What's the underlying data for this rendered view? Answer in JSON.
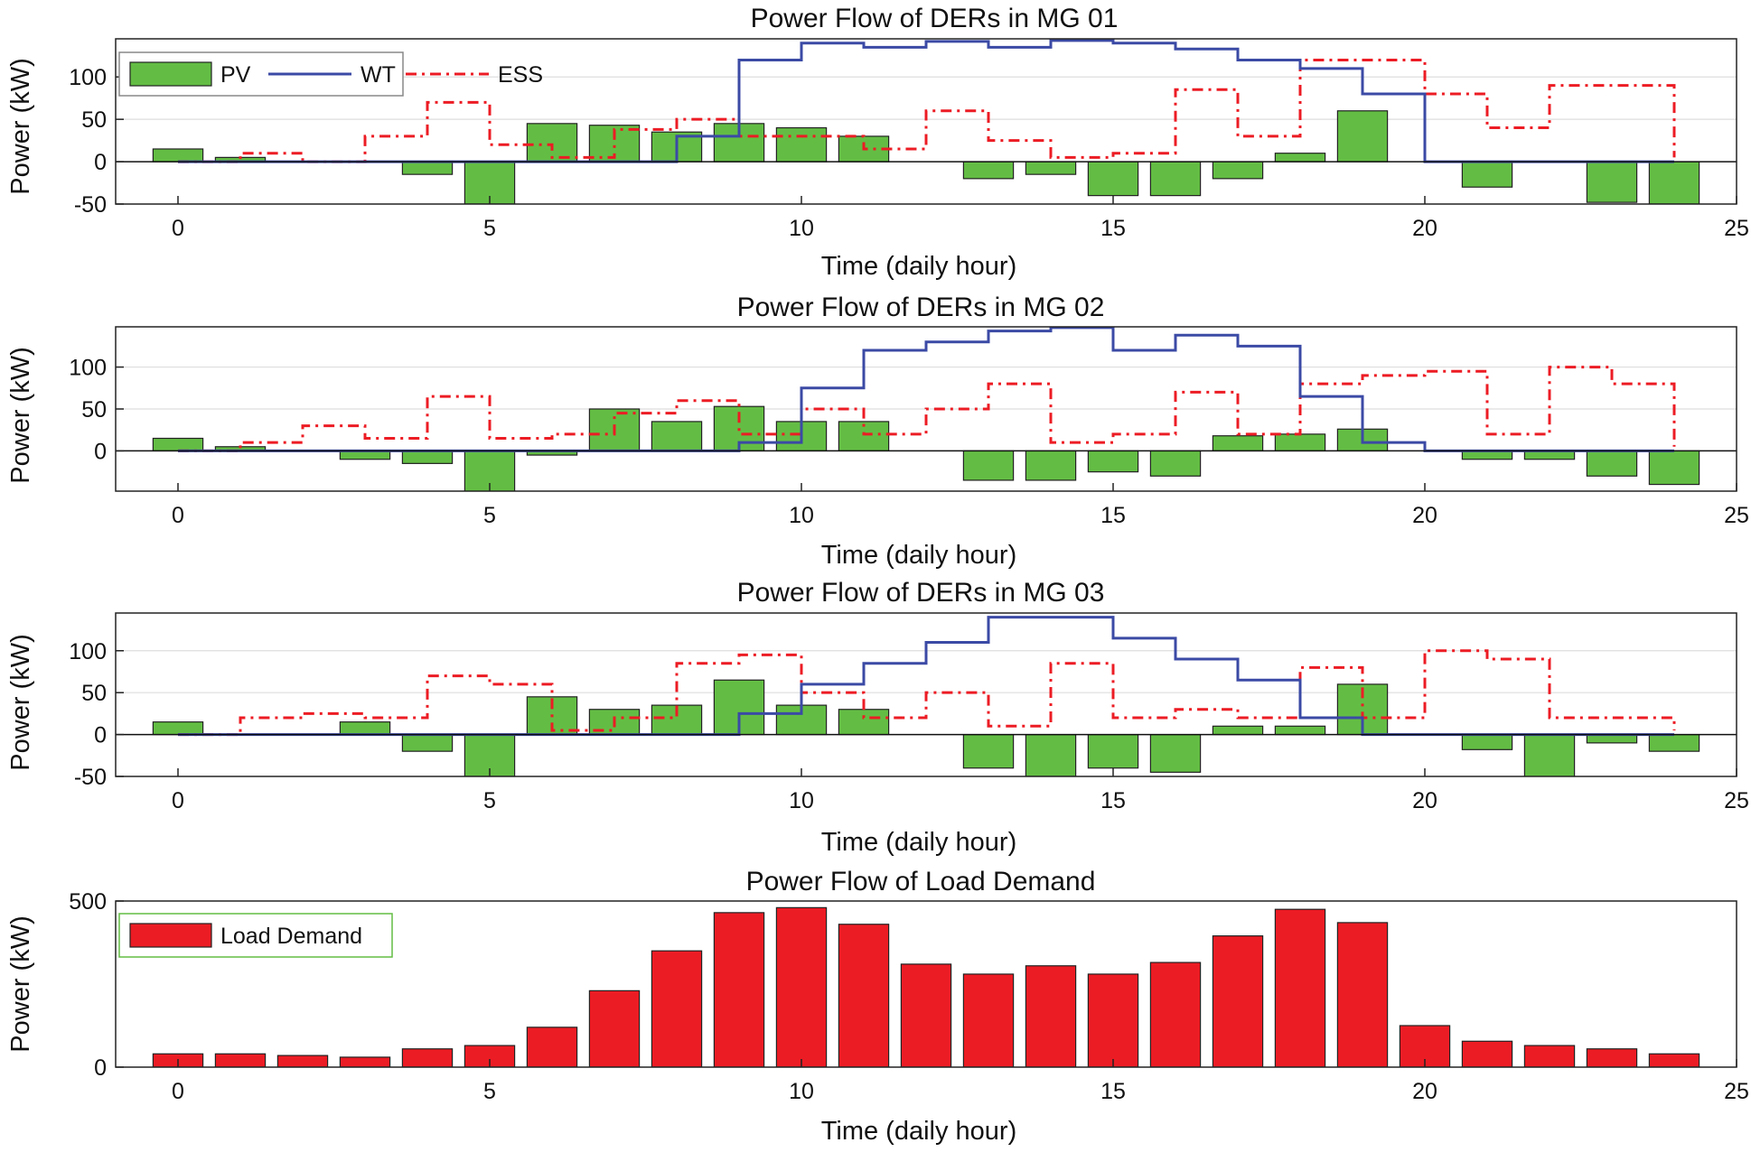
{
  "chart_data": [
    {
      "type": "bar+stairs",
      "title": "Power Flow of DERs in MG 01",
      "xlabel": "Time (daily hour)",
      "ylabel": "Power (kW)",
      "xlim": [
        -1,
        25
      ],
      "ylim": [
        -50,
        145
      ],
      "xticks": [
        0,
        5,
        10,
        15,
        20,
        25
      ],
      "yticks": [
        -50,
        0,
        50,
        100
      ],
      "grid": true,
      "legend": {
        "position": "top-left",
        "entries": [
          "PV",
          "WT",
          "ESS"
        ]
      },
      "pv": {
        "name": "PV",
        "x": [
          0,
          1,
          2,
          3,
          4,
          5,
          6,
          7,
          8,
          9,
          10,
          11,
          12,
          13,
          14,
          15,
          16,
          17,
          18,
          19,
          20,
          21,
          22,
          23,
          24
        ],
        "values": [
          15,
          5,
          0,
          0,
          -15,
          -50,
          45,
          43,
          35,
          45,
          40,
          30,
          0,
          -20,
          -15,
          -40,
          -40,
          -20,
          10,
          60,
          0,
          -30,
          0,
          -48,
          -50
        ]
      },
      "wt": {
        "name": "WT",
        "x": [
          0,
          1,
          2,
          3,
          4,
          5,
          6,
          7,
          8,
          9,
          10,
          11,
          12,
          13,
          14,
          15,
          16,
          17,
          18,
          19,
          20,
          21,
          22,
          23,
          24
        ],
        "values": [
          0,
          0,
          0,
          0,
          0,
          0,
          0,
          0,
          30,
          120,
          140,
          135,
          142,
          135,
          143,
          140,
          133,
          120,
          110,
          80,
          0,
          0,
          0,
          0,
          0
        ]
      },
      "ess": {
        "name": "ESS",
        "x": [
          0,
          1,
          2,
          3,
          4,
          5,
          6,
          7,
          8,
          9,
          10,
          11,
          12,
          13,
          14,
          15,
          16,
          17,
          18,
          19,
          20,
          21,
          22,
          23,
          24
        ],
        "values": [
          0,
          10,
          0,
          30,
          70,
          20,
          5,
          38,
          50,
          30,
          30,
          15,
          60,
          25,
          5,
          10,
          85,
          30,
          120,
          120,
          80,
          40,
          90,
          90,
          5
        ]
      }
    },
    {
      "type": "bar+stairs",
      "title": "Power Flow of DERs in MG 02",
      "xlabel": "Time (daily hour)",
      "ylabel": "Power (kW)",
      "xlim": [
        -1,
        25
      ],
      "ylim": [
        -48,
        148
      ],
      "xticks": [
        0,
        5,
        10,
        15,
        20,
        25
      ],
      "yticks": [
        0,
        50,
        100
      ],
      "grid": true,
      "pv": {
        "name": "PV",
        "x": [
          0,
          1,
          2,
          3,
          4,
          5,
          6,
          7,
          8,
          9,
          10,
          11,
          12,
          13,
          14,
          15,
          16,
          17,
          18,
          19,
          20,
          21,
          22,
          23,
          24
        ],
        "values": [
          15,
          5,
          0,
          -10,
          -15,
          -50,
          -5,
          50,
          35,
          53,
          35,
          35,
          0,
          -35,
          -35,
          -25,
          -30,
          18,
          20,
          26,
          0,
          -10,
          -10,
          -30,
          -40
        ]
      },
      "wt": {
        "name": "WT",
        "x": [
          0,
          1,
          2,
          3,
          4,
          5,
          6,
          7,
          8,
          9,
          10,
          11,
          12,
          13,
          14,
          15,
          16,
          17,
          18,
          19,
          20,
          21,
          22,
          23,
          24
        ],
        "values": [
          0,
          0,
          0,
          0,
          0,
          0,
          0,
          0,
          0,
          10,
          75,
          120,
          130,
          143,
          147,
          120,
          138,
          125,
          65,
          10,
          0,
          0,
          0,
          0,
          0
        ]
      },
      "ess": {
        "name": "ESS",
        "x": [
          0,
          1,
          2,
          3,
          4,
          5,
          6,
          7,
          8,
          9,
          10,
          11,
          12,
          13,
          14,
          15,
          16,
          17,
          18,
          19,
          20,
          21,
          22,
          23,
          24
        ],
        "values": [
          0,
          10,
          30,
          15,
          65,
          15,
          20,
          45,
          60,
          20,
          50,
          20,
          50,
          80,
          10,
          20,
          70,
          20,
          80,
          90,
          95,
          20,
          100,
          80,
          5
        ]
      }
    },
    {
      "type": "bar+stairs",
      "title": "Power Flow of DERs in MG 03",
      "xlabel": "Time (daily hour)",
      "ylabel": "Power (kW)",
      "xlim": [
        -1,
        25
      ],
      "ylim": [
        -50,
        145
      ],
      "xticks": [
        0,
        5,
        10,
        15,
        20,
        25
      ],
      "yticks": [
        -50,
        0,
        50,
        100
      ],
      "grid": true,
      "pv": {
        "name": "PV",
        "x": [
          0,
          1,
          2,
          3,
          4,
          5,
          6,
          7,
          8,
          9,
          10,
          11,
          12,
          13,
          14,
          15,
          16,
          17,
          18,
          19,
          20,
          21,
          22,
          23,
          24
        ],
        "values": [
          15,
          0,
          0,
          15,
          -20,
          -50,
          45,
          30,
          35,
          65,
          35,
          30,
          0,
          -40,
          -50,
          -40,
          -45,
          10,
          10,
          60,
          0,
          -18,
          -55,
          -10,
          -20
        ]
      },
      "wt": {
        "name": "WT",
        "x": [
          0,
          1,
          2,
          3,
          4,
          5,
          6,
          7,
          8,
          9,
          10,
          11,
          12,
          13,
          14,
          15,
          16,
          17,
          18,
          19,
          20,
          21,
          22,
          23,
          24
        ],
        "values": [
          0,
          0,
          0,
          0,
          0,
          0,
          0,
          0,
          0,
          25,
          60,
          85,
          110,
          140,
          140,
          115,
          90,
          65,
          20,
          0,
          0,
          0,
          0,
          0,
          0
        ]
      },
      "ess": {
        "name": "ESS",
        "x": [
          0,
          1,
          2,
          3,
          4,
          5,
          6,
          7,
          8,
          9,
          10,
          11,
          12,
          13,
          14,
          15,
          16,
          17,
          18,
          19,
          20,
          21,
          22,
          23,
          24
        ],
        "values": [
          0,
          20,
          25,
          20,
          70,
          60,
          5,
          20,
          85,
          95,
          50,
          20,
          50,
          10,
          85,
          20,
          30,
          20,
          80,
          20,
          100,
          90,
          20,
          20,
          5
        ]
      }
    },
    {
      "type": "bar",
      "title": "Power Flow of Load Demand",
      "xlabel": "Time (daily hour)",
      "ylabel": "Power (kW)",
      "xlim": [
        -1,
        25
      ],
      "ylim": [
        0,
        500
      ],
      "xticks": [
        0,
        5,
        10,
        15,
        20,
        25
      ],
      "yticks": [
        0,
        500
      ],
      "grid": false,
      "legend": {
        "position": "top-left",
        "entries": [
          "Load Demand"
        ]
      },
      "load": {
        "name": "Load Demand",
        "x": [
          0,
          1,
          2,
          3,
          4,
          5,
          6,
          7,
          8,
          9,
          10,
          11,
          12,
          13,
          14,
          15,
          16,
          17,
          18,
          19,
          20,
          21,
          22,
          23,
          24
        ],
        "values": [
          40,
          40,
          35,
          30,
          55,
          65,
          120,
          230,
          350,
          465,
          480,
          430,
          310,
          280,
          305,
          280,
          315,
          395,
          475,
          435,
          125,
          78,
          65,
          55,
          40
        ]
      }
    }
  ],
  "colors": {
    "pv": "#63bd44",
    "wt": "#3b4aa5",
    "ess": "#ec1c24",
    "load": "#ec1c24",
    "grid": "#dedede"
  }
}
